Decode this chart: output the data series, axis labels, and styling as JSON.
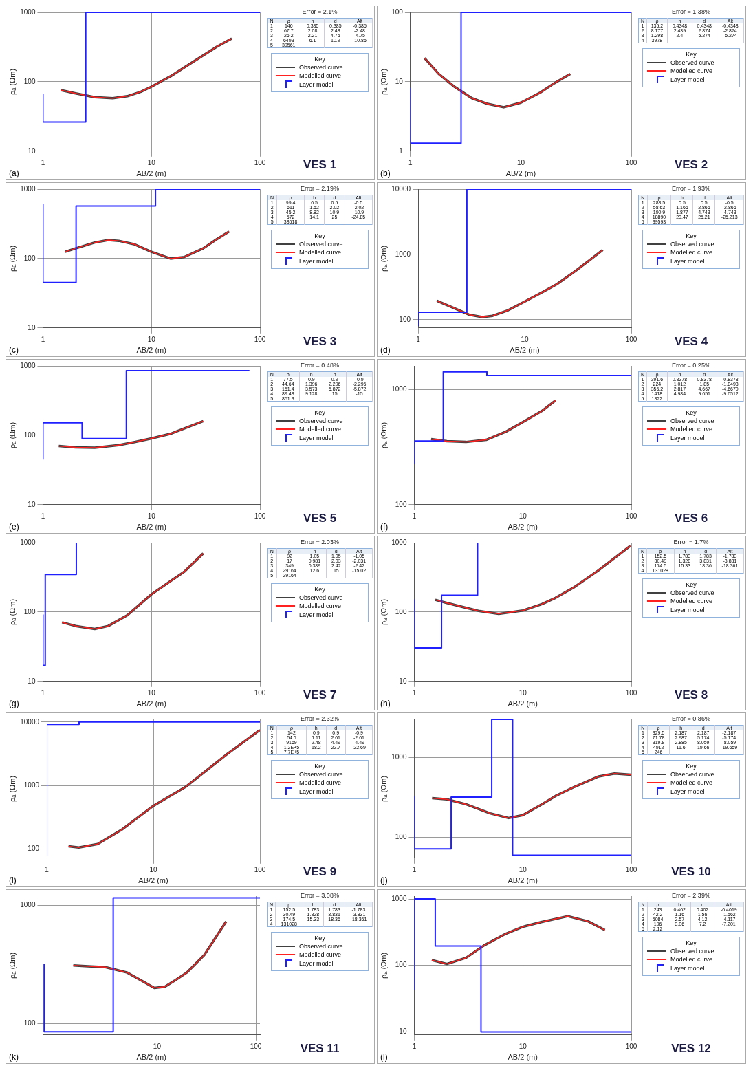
{
  "chart_data": [
    {
      "type": "line",
      "xlabel": "AB/2 (m)",
      "ylabel": "ρₐ (Ωm)",
      "legend_title": "Key",
      "legend": "right",
      "log": "xy",
      "grid": true,
      "xlim": [
        1,
        100
      ],
      "xticks": [
        1,
        10,
        100
      ],
      "ylim": [
        10,
        1000
      ],
      "yticks": [
        10,
        100,
        1000
      ],
      "annotations": [
        "(a)",
        "Error = 2.1%",
        "VES 1",
        "N ρ h d Alt",
        "1 146 0.385 0.385 -0.385",
        "2 67.7 2.08 2.48 -2.48",
        "3 26.2 2.21 4.75 -4.75",
        "4 6493 6.1 10.9 -10.85",
        "5 39561"
      ],
      "series": [
        {
          "name": "Observed curve",
          "color": "#404040",
          "x": [
            1.46,
            2,
            3,
            4.4,
            6,
            8,
            10,
            15,
            20,
            30,
            40,
            55
          ],
          "values": [
            76,
            68,
            60,
            58,
            62,
            72,
            85,
            120,
            160,
            240,
            320,
            420
          ]
        },
        {
          "name": "Modelled curve",
          "color": "#ff2020",
          "x": [
            1.46,
            2,
            3,
            4.4,
            6,
            8,
            10,
            15,
            20,
            30,
            40,
            55
          ],
          "values": [
            76,
            68,
            60,
            58,
            62,
            72,
            85,
            120,
            160,
            240,
            320,
            420
          ]
        },
        {
          "name": "Layer model",
          "type": "step",
          "color": "#2020ff",
          "x": [
            1,
            2.48,
            4.75,
            100
          ],
          "values": [
            67.7,
            26.2,
            1000,
            1000
          ]
        }
      ]
    },
    {
      "type": "line",
      "xlabel": "AB/2 (m)",
      "ylabel": "ρₐ (Ωm)",
      "legend_title": "Key",
      "legend": "right",
      "log": "xy",
      "grid": true,
      "xlim": [
        1,
        100
      ],
      "xticks": [
        1,
        10,
        100
      ],
      "ylim": [
        1,
        100
      ],
      "yticks": [
        1,
        10,
        100
      ],
      "annotations": [
        "(b)",
        "Error = 1.38%",
        "VES 2",
        "N ρ h d Alt",
        "1 135.2 0.4348 0.4348 -0.4348",
        "2 8.177 2.439 2.874 -2.874",
        "3 1.298 2.4 5.274 -5.274",
        "4 3978"
      ],
      "series": [
        {
          "name": "Observed curve",
          "color": "#404040",
          "x": [
            1.34,
            1.8,
            2.5,
            3.6,
            5,
            7,
            10,
            15,
            20,
            28
          ],
          "values": [
            22,
            13,
            8.5,
            5.8,
            4.8,
            4.3,
            5,
            7,
            9.5,
            13
          ]
        },
        {
          "name": "Modelled curve",
          "color": "#ff2020",
          "x": [
            1.34,
            1.8,
            2.5,
            3.6,
            5,
            7,
            10,
            15,
            20,
            28
          ],
          "values": [
            22,
            13,
            8.5,
            5.8,
            4.8,
            4.3,
            5,
            7,
            9.5,
            13
          ]
        },
        {
          "name": "Layer model",
          "type": "step",
          "color": "#2020ff",
          "x": [
            1,
            2.874,
            5.274,
            100
          ],
          "values": [
            8.177,
            1.298,
            100,
            100
          ]
        }
      ]
    },
    {
      "type": "line",
      "xlabel": "AB/2 (m)",
      "ylabel": "ρₐ (Ωm)",
      "legend_title": "Key",
      "legend": "right",
      "log": "xy",
      "grid": true,
      "xlim": [
        1,
        100
      ],
      "xticks": [
        1,
        10,
        100
      ],
      "ylim": [
        10,
        1000
      ],
      "yticks": [
        10,
        100,
        1000
      ],
      "annotations": [
        "(c)",
        "Error = 2.19%",
        "VES 3",
        "N ρ h d Alt",
        "1 99.4 0.5 0.5 -0.5",
        "2 611 1.52 2.02 -2.02",
        "3 45.2 8.82 10.9 -10.9",
        "4 572 14.1 25 -24.85",
        "5 38618"
      ],
      "series": [
        {
          "name": "Observed curve",
          "color": "#404040",
          "x": [
            1.6,
            2,
            3,
            4,
            5,
            7,
            10,
            15,
            20,
            30,
            40,
            52
          ],
          "values": [
            125,
            140,
            170,
            185,
            180,
            160,
            125,
            100,
            105,
            140,
            190,
            245
          ]
        },
        {
          "name": "Modelled curve",
          "color": "#ff2020",
          "x": [
            1.6,
            2,
            3,
            4,
            5,
            7,
            10,
            15,
            20,
            30,
            40,
            52
          ],
          "values": [
            125,
            140,
            170,
            185,
            180,
            160,
            125,
            100,
            105,
            140,
            190,
            245
          ]
        },
        {
          "name": "Layer model",
          "type": "step",
          "color": "#2020ff",
          "x": [
            1,
            2.02,
            10.9,
            25,
            100
          ],
          "values": [
            611,
            45.2,
            572,
            1000,
            1000
          ]
        }
      ]
    },
    {
      "type": "line",
      "xlabel": "AB/2 (m)",
      "ylabel": "ρₐ (Ωm)",
      "legend_title": "Key",
      "legend": "right",
      "log": "xy",
      "grid": true,
      "xlim": [
        1,
        100
      ],
      "xticks": [
        1,
        10,
        100
      ],
      "ylim": [
        75,
        10000
      ],
      "yticks": [
        100,
        1000,
        10000
      ],
      "annotations": [
        "(d)",
        "Error = 1.93%",
        "VES 4",
        "N ρ h d Alt",
        "1 283.5 0.5 0.5 -0.5",
        "2 58.63 1.166 2.866 -2.866",
        "3 190.9 1.877 4.743 -4.743",
        "4 18890 20.47 25.21 -25.213",
        "5 39593"
      ],
      "series": [
        {
          "name": "Observed curve",
          "color": "#404040",
          "x": [
            1.5,
            2,
            3,
            4,
            5,
            7,
            10,
            15,
            20,
            30,
            40,
            54
          ],
          "values": [
            195,
            160,
            120,
            110,
            115,
            140,
            190,
            270,
            350,
            560,
            800,
            1170
          ]
        },
        {
          "name": "Modelled curve",
          "color": "#ff2020",
          "x": [
            1.5,
            2,
            3,
            4,
            5,
            7,
            10,
            15,
            20,
            30,
            40,
            54
          ],
          "values": [
            195,
            160,
            120,
            110,
            115,
            140,
            190,
            270,
            350,
            560,
            800,
            1170
          ]
        },
        {
          "name": "Layer model",
          "type": "step",
          "color": "#2020ff",
          "x": [
            1,
            2.866,
            4.743,
            100
          ],
          "values": [
            80,
            130,
            10000,
            10000
          ]
        }
      ]
    },
    {
      "type": "line",
      "xlabel": "AB/2 (m)",
      "ylabel": "ρₐ (Ωm)",
      "legend_title": "Key",
      "legend": "right",
      "log": "xy",
      "grid": true,
      "xlim": [
        1,
        100
      ],
      "xticks": [
        1,
        10,
        100
      ],
      "ylim": [
        10,
        1000
      ],
      "yticks": [
        10,
        100,
        1000
      ],
      "annotations": [
        "(e)",
        "Error = 0.48%",
        "VES 5",
        "N ρ h d Alt",
        "1 77.5 0.9 0.9 -0.9",
        "2 44.64 1.396 2.296 -2.296",
        "3 151.4 3.573 5.872 -5.872",
        "4 89.48 9.128 15 -15",
        "5 851.3"
      ],
      "series": [
        {
          "name": "Observed curve",
          "color": "#404040",
          "x": [
            1.4,
            2,
            3,
            5,
            7,
            10,
            15,
            20,
            30
          ],
          "values": [
            70,
            67,
            66,
            72,
            80,
            90,
            105,
            125,
            160
          ]
        },
        {
          "name": "Modelled curve",
          "color": "#ff2020",
          "x": [
            1.4,
            2,
            3,
            5,
            7,
            10,
            15,
            20,
            30
          ],
          "values": [
            70,
            67,
            66,
            72,
            80,
            90,
            105,
            125,
            160
          ]
        },
        {
          "name": "Layer model",
          "type": "step",
          "color": "#2020ff",
          "x": [
            1,
            2.296,
            5.872,
            15,
            80
          ],
          "values": [
            44.64,
            151.4,
            89.48,
            851.3,
            851.3
          ]
        }
      ]
    },
    {
      "type": "line",
      "xlabel": "AB/2 (m)",
      "ylabel": "ρₐ (Ωm)",
      "legend_title": "Key",
      "legend": "right",
      "log": "xy",
      "grid": true,
      "xlim": [
        1,
        100
      ],
      "xticks": [
        1,
        10,
        100
      ],
      "ylim": [
        100,
        1600
      ],
      "yticks": [
        100,
        1000
      ],
      "annotations": [
        "(f)",
        "Error = 0.25%",
        "VES 6",
        "N ρ h d Alt",
        "1 391.6 0.8378 0.8378 -0.8378",
        "2 224 1.012 1.85 -1.8498",
        "3 356.2 2.817 4.667 -4.6670",
        "4 1418 4.984 9.651 -9.6512",
        "5 1322"
      ],
      "series": [
        {
          "name": "Observed curve",
          "color": "#404040",
          "x": [
            1.43,
            2,
            3,
            4.6,
            7,
            10,
            15,
            20
          ],
          "values": [
            370,
            355,
            350,
            365,
            430,
            520,
            650,
            800
          ]
        },
        {
          "name": "Modelled curve",
          "color": "#ff2020",
          "x": [
            1.43,
            2,
            3,
            4.6,
            7,
            10,
            15,
            20
          ],
          "values": [
            370,
            355,
            350,
            365,
            430,
            520,
            650,
            800
          ]
        },
        {
          "name": "Layer model",
          "type": "step",
          "color": "#2020ff",
          "x": [
            1,
            1.85,
            4.667,
            9.651,
            100
          ],
          "values": [
            224,
            356.2,
            1418,
            1322,
            1322
          ]
        }
      ]
    },
    {
      "type": "line",
      "xlabel": "AB/2 (m)",
      "ylabel": "ρₐ (Ωm)",
      "legend_title": "Key",
      "legend": "right",
      "log": "xy",
      "grid": true,
      "xlim": [
        1,
        100
      ],
      "xticks": [
        1,
        10,
        100
      ],
      "ylim": [
        10,
        1000
      ],
      "yticks": [
        10,
        100,
        1000
      ],
      "annotations": [
        "(g)",
        "Error = 2.03%",
        "VES 7",
        "N ρ h d Alt",
        "1 92 1.05 1.05 -1.05",
        "2 17 0.981 2.03 -2.031",
        "3 349 0.389 2.42 -2.42",
        "4 29164 12.6 15 -15.02",
        "5 29164"
      ],
      "series": [
        {
          "name": "Observed curve",
          "color": "#404040",
          "x": [
            1.5,
            2,
            3,
            4,
            6,
            10,
            20,
            30
          ],
          "values": [
            71,
            63,
            57,
            63,
            90,
            180,
            380,
            700
          ]
        },
        {
          "name": "Modelled curve",
          "color": "#ff2020",
          "x": [
            1.5,
            2,
            3,
            4,
            6,
            10,
            20,
            30
          ],
          "values": [
            71,
            63,
            57,
            63,
            90,
            180,
            380,
            700
          ]
        },
        {
          "name": "Layer model",
          "type": "step",
          "color": "#2020ff",
          "x": [
            1,
            1.05,
            2.03,
            2.42,
            100
          ],
          "values": [
            92,
            17,
            349,
            1000,
            1000
          ]
        }
      ]
    },
    {
      "type": "line",
      "xlabel": "AB/2 (m)",
      "ylabel": "ρₐ (Ωm)",
      "legend_title": "Key",
      "legend": "right",
      "log": "xy",
      "grid": true,
      "xlim": [
        1,
        100
      ],
      "xticks": [
        1,
        10,
        100
      ],
      "ylim": [
        10,
        1000
      ],
      "yticks": [
        10,
        100,
        1000
      ],
      "annotations": [
        "(h)",
        "Error = 1.7%",
        "VES 8",
        "N ρ h d Alt",
        "1 152.5 1.783 1.783 -1.783",
        "2 30.49 1.328 3.831 -3.831",
        "3 174.5 15.33 18.36 -18.361",
        "4 131028"
      ],
      "series": [
        {
          "name": "Observed curve",
          "color": "#404040",
          "x": [
            1.56,
            2,
            3,
            4,
            6,
            10,
            15,
            20,
            30,
            50,
            98
          ],
          "values": [
            150,
            135,
            115,
            103,
            94,
            105,
            130,
            160,
            230,
            400,
            900
          ]
        },
        {
          "name": "Modelled curve",
          "color": "#ff2020",
          "x": [
            1.56,
            2,
            3,
            4,
            6,
            10,
            15,
            20,
            30,
            50,
            98
          ],
          "values": [
            150,
            135,
            115,
            103,
            94,
            105,
            130,
            160,
            230,
            400,
            900
          ]
        },
        {
          "name": "Layer model",
          "type": "step",
          "color": "#2020ff",
          "x": [
            1,
            1.783,
            3.831,
            18.36,
            100
          ],
          "values": [
            152.5,
            30.49,
            174.5,
            1000,
            1000
          ]
        }
      ]
    },
    {
      "type": "line",
      "xlabel": "AB/2 (m)",
      "ylabel": "ρₐ (Ωm)",
      "legend_title": "Key",
      "legend": "right",
      "log": "xy",
      "grid": true,
      "xlim": [
        1,
        100
      ],
      "xticks": [
        1,
        10,
        100
      ],
      "ylim": [
        72,
        11000
      ],
      "yticks": [
        100,
        1000,
        10000
      ],
      "annotations": [
        "(i)",
        "Error = 2.32%",
        "VES 9",
        "N ρ h d Alt",
        "1 142 0.9 0.9 -0.9",
        "2 54.6 1.11 2.01 -2.01",
        "3 9169 2.48 4.49 -4.49",
        "4 1.2E+5 18.2 22.7 -22.69",
        "5 7.7E+5"
      ],
      "series": [
        {
          "name": "Observed curve",
          "color": "#404040",
          "x": [
            1.6,
            2,
            3,
            5,
            10,
            20,
            50,
            100
          ],
          "values": [
            111,
            106,
            120,
            200,
            480,
            950,
            3200,
            7500
          ]
        },
        {
          "name": "Modelled curve",
          "color": "#ff2020",
          "x": [
            1.6,
            2,
            3,
            5,
            10,
            20,
            50,
            100
          ],
          "values": [
            111,
            106,
            120,
            200,
            480,
            950,
            3200,
            7500
          ]
        },
        {
          "name": "Layer model",
          "type": "step",
          "color": "#2020ff",
          "x": [
            1,
            2.01,
            4.49,
            100
          ],
          "values": [
            77,
            9169,
            10000,
            10000
          ]
        }
      ]
    },
    {
      "type": "line",
      "xlabel": "AB/2 (m)",
      "ylabel": "ρₐ (Ωm)",
      "legend_title": "Key",
      "legend": "right",
      "log": "xy",
      "grid": true,
      "xlim": [
        1,
        100
      ],
      "xticks": [
        1,
        10,
        100
      ],
      "ylim": [
        55,
        3000
      ],
      "yticks": [
        100,
        1000
      ],
      "annotations": [
        "(j)",
        "Error = 0.86%",
        "VES 10",
        "N ρ h d Alt",
        "1 329.5 2.187 2.187 -2.187",
        "2 71.78 2.987 5.174 -5.174",
        "3 319.8 2.885 8.059 -8.059",
        "4 4912 11.6 19.66 -19.659",
        "5 246"
      ],
      "series": [
        {
          "name": "Observed curve",
          "color": "#404040",
          "x": [
            1.46,
            2,
            3,
            5,
            7.4,
            10,
            15,
            20,
            30,
            50,
            70,
            100
          ],
          "values": [
            310,
            300,
            260,
            200,
            175,
            190,
            260,
            330,
            430,
            580,
            630,
            610
          ]
        },
        {
          "name": "Modelled curve",
          "color": "#ff2020",
          "x": [
            1.46,
            2,
            3,
            5,
            7.4,
            10,
            15,
            20,
            30,
            50,
            70,
            100
          ],
          "values": [
            310,
            300,
            260,
            200,
            175,
            190,
            260,
            330,
            430,
            580,
            630,
            610
          ]
        },
        {
          "name": "Layer model",
          "type": "step",
          "color": "#2020ff",
          "x": [
            1,
            2.187,
            5.174,
            8.059,
            19.66,
            100
          ],
          "values": [
            329.5,
            71.78,
            319.8,
            3000,
            60,
            60
          ]
        }
      ]
    },
    {
      "type": "line",
      "xlabel": "AB/2 (m)",
      "ylabel": "ρₐ (Ωm)",
      "legend_title": "Key",
      "legend": "right",
      "log": "xy",
      "grid": true,
      "xlim": [
        0.72,
        110
      ],
      "xticks": [
        10,
        100
      ],
      "ylim": [
        80,
        1200
      ],
      "yticks": [
        100,
        1000
      ],
      "annotations": [
        "(k)",
        "Error = 3.08%",
        "VES 11",
        "N ρ h d Alt",
        "1 152.5 1.783 1.783 -1.783",
        "2 30.49 1.328 3.831 -3.831",
        "3 174.5 15.33 18.36 -18.361",
        "4 131028"
      ],
      "series": [
        {
          "name": "Observed curve",
          "color": "#404040",
          "x": [
            1.42,
            2,
            3,
            5,
            7,
            9.4,
            12,
            15,
            20,
            30,
            50
          ],
          "values": [
            310,
            305,
            300,
            270,
            230,
            200,
            205,
            230,
            270,
            380,
            730
          ]
        },
        {
          "name": "Modelled curve",
          "color": "#ff2020",
          "x": [
            1.42,
            2,
            3,
            5,
            7,
            9.4,
            12,
            15,
            20,
            30,
            50
          ],
          "values": [
            310,
            305,
            300,
            270,
            230,
            200,
            205,
            230,
            270,
            380,
            730
          ]
        },
        {
          "name": "Layer model",
          "type": "step",
          "color": "#2020ff",
          "x": [
            0.72,
            3.6,
            8.3,
            110
          ],
          "values": [
            320,
            85,
            1160,
            1160
          ]
        }
      ]
    },
    {
      "type": "line",
      "xlabel": "AB/2 (m)",
      "ylabel": "ρₐ (Ωm)",
      "legend_title": "Key",
      "legend": "right",
      "log": "xy",
      "grid": true,
      "xlim": [
        1,
        100
      ],
      "xticks": [
        1,
        10,
        100
      ],
      "ylim": [
        9,
        1100
      ],
      "yticks": [
        10,
        100,
        1000
      ],
      "annotations": [
        "(l)",
        "Error = 2.39%",
        "VES 12",
        "N ρ h d Alt",
        "1 243 0.402 0.402 -0.4019",
        "2 42.2 1.16 1.56 -1.562",
        "3 5084 2.57 4.12 -4.117",
        "4 196 3.06 7.2 -7.201",
        "5 2.12"
      ],
      "series": [
        {
          "name": "Observed curve",
          "color": "#404040",
          "x": [
            1.45,
            2,
            3,
            4.4,
            7,
            10,
            15,
            26,
            40,
            57
          ],
          "values": [
            120,
            105,
            130,
            200,
            300,
            380,
            450,
            550,
            460,
            340
          ]
        },
        {
          "name": "Modelled curve",
          "color": "#ff2020",
          "x": [
            1.45,
            2,
            3,
            4.4,
            7,
            10,
            15,
            26,
            40,
            57
          ],
          "values": [
            120,
            105,
            130,
            200,
            300,
            380,
            450,
            550,
            460,
            340
          ]
        },
        {
          "name": "Layer model",
          "type": "step",
          "color": "#2020ff",
          "x": [
            1,
            1.56,
            4.12,
            7.2,
            100
          ],
          "values": [
            42.2,
            1000,
            196,
            10,
            10
          ]
        }
      ]
    }
  ]
}
